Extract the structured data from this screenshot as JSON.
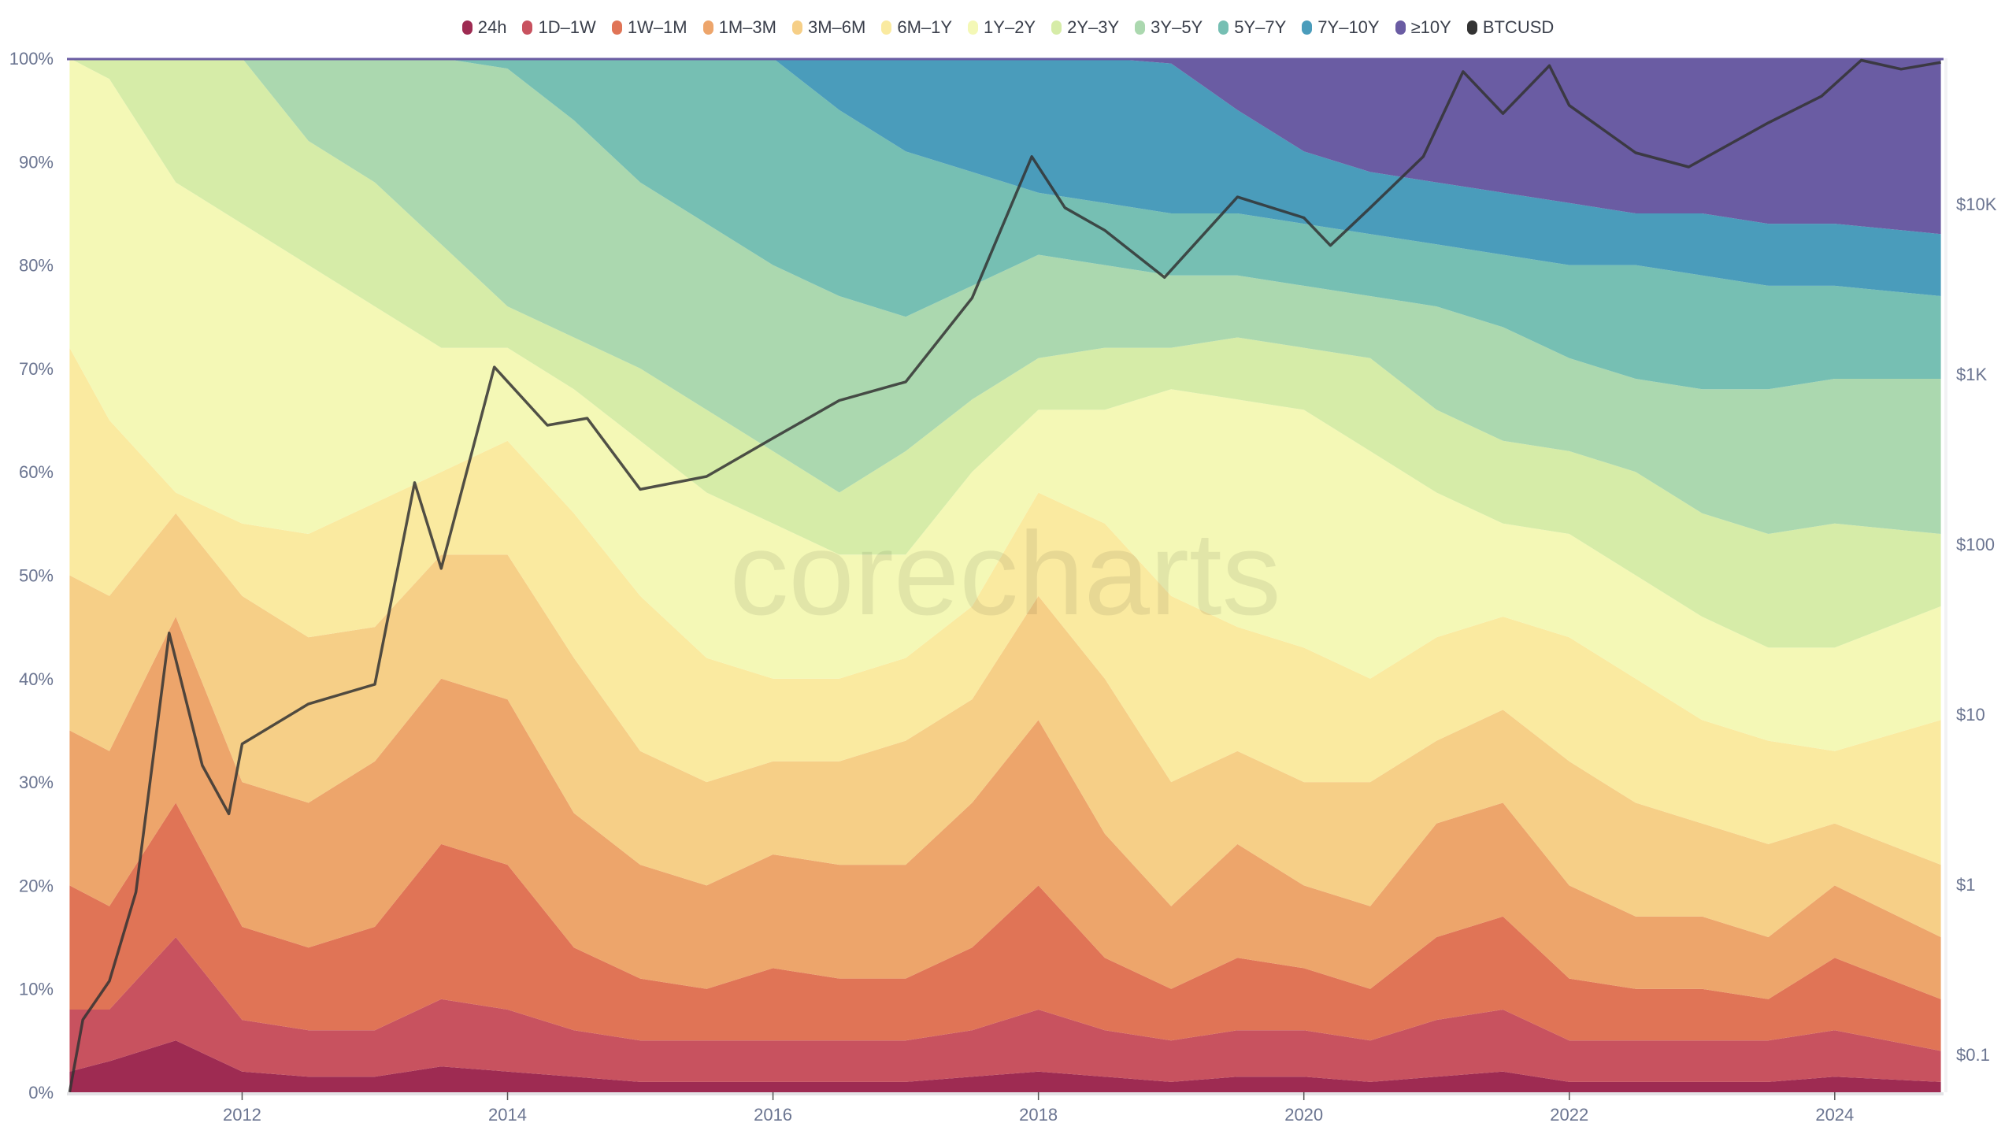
{
  "chart_data": {
    "type": "area",
    "stacked": true,
    "normalized_percent": true,
    "watermark": "corecharts",
    "legend_position": "top-center",
    "series_names": [
      "24h",
      "1D–1W",
      "1W–1M",
      "1M–3M",
      "3M–6M",
      "6M–1Y",
      "1Y–2Y",
      "2Y–3Y",
      "3Y–5Y",
      "5Y–7Y",
      "7Y–10Y",
      "≥10Y",
      "BTCUSD"
    ],
    "colors": [
      "#9e2b52",
      "#c8525f",
      "#e07456",
      "#eda56b",
      "#f6cf87",
      "#faeaa0",
      "#f4f8b6",
      "#d6eca8",
      "#abd8af",
      "#76bfb3",
      "#4a9cbb",
      "#6a5ca3",
      "#333333"
    ],
    "x": [
      2010.7,
      2011,
      2011.5,
      2012,
      2012.5,
      2013,
      2013.5,
      2014,
      2014.5,
      2015,
      2015.5,
      2016,
      2016.5,
      2017,
      2017.5,
      2018,
      2018.5,
      2019,
      2019.5,
      2020,
      2020.5,
      2021,
      2021.5,
      2022,
      2022.5,
      2023,
      2023.5,
      2024,
      2024.8
    ],
    "cumulative_tops_percent": [
      [
        2,
        3,
        5,
        2,
        1.5,
        1.5,
        2.5,
        2,
        1.5,
        1,
        1,
        1,
        1,
        1,
        1.5,
        2,
        1.5,
        1,
        1.5,
        1.5,
        1,
        1.5,
        2,
        1,
        1,
        1,
        1,
        1.5,
        1
      ],
      [
        8,
        8,
        15,
        7,
        6,
        6,
        9,
        8,
        6,
        5,
        5,
        5,
        5,
        5,
        6,
        8,
        6,
        5,
        6,
        6,
        5,
        7,
        8,
        5,
        5,
        5,
        5,
        6,
        4
      ],
      [
        20,
        18,
        28,
        16,
        14,
        16,
        24,
        22,
        14,
        11,
        10,
        12,
        11,
        11,
        14,
        20,
        13,
        10,
        13,
        12,
        10,
        15,
        17,
        11,
        10,
        10,
        9,
        13,
        9
      ],
      [
        35,
        33,
        46,
        30,
        28,
        32,
        40,
        38,
        27,
        22,
        20,
        23,
        22,
        22,
        28,
        36,
        25,
        18,
        24,
        20,
        18,
        26,
        28,
        20,
        17,
        17,
        15,
        20,
        15
      ],
      [
        50,
        48,
        56,
        48,
        44,
        45,
        52,
        52,
        42,
        33,
        30,
        32,
        32,
        34,
        38,
        48,
        40,
        30,
        33,
        30,
        30,
        34,
        37,
        32,
        28,
        26,
        24,
        26,
        22
      ],
      [
        72,
        65,
        58,
        55,
        54,
        57,
        60,
        63,
        56,
        48,
        42,
        40,
        40,
        42,
        47,
        58,
        55,
        48,
        45,
        43,
        40,
        44,
        46,
        44,
        40,
        36,
        34,
        33,
        36
      ],
      [
        100,
        98,
        88,
        84,
        80,
        76,
        72,
        72,
        68,
        63,
        58,
        55,
        52,
        52,
        60,
        66,
        66,
        68,
        67,
        66,
        62,
        58,
        55,
        54,
        50,
        46,
        43,
        43,
        47
      ],
      [
        100,
        100,
        100,
        100,
        92,
        88,
        82,
        76,
        73,
        70,
        66,
        62,
        58,
        62,
        67,
        71,
        72,
        72,
        73,
        72,
        71,
        66,
        63,
        62,
        60,
        56,
        54,
        55,
        54
      ],
      [
        100,
        100,
        100,
        100,
        100,
        100,
        100,
        99,
        94,
        88,
        84,
        80,
        77,
        75,
        78,
        81,
        80,
        79,
        79,
        78,
        77,
        76,
        74,
        71,
        69,
        68,
        68,
        69,
        69
      ],
      [
        100,
        100,
        100,
        100,
        100,
        100,
        100,
        100,
        100,
        100,
        100,
        100,
        95,
        91,
        89,
        87,
        86,
        85,
        85,
        84,
        83,
        82,
        81,
        80,
        80,
        79,
        78,
        78,
        77
      ],
      [
        100,
        100,
        100,
        100,
        100,
        100,
        100,
        100,
        100,
        100,
        100,
        100,
        100,
        100,
        100,
        100,
        100,
        99.5,
        95,
        91,
        89,
        88,
        87,
        86,
        85,
        85,
        84,
        84,
        83
      ]
    ],
    "btc_price": {
      "x": [
        2010.7,
        2010.8,
        2011,
        2011.2,
        2011.45,
        2011.7,
        2011.9,
        2012,
        2012.5,
        2013,
        2013.3,
        2013.5,
        2013.9,
        2014.3,
        2014.6,
        2015,
        2015.5,
        2016,
        2016.5,
        2017,
        2017.5,
        2017.95,
        2018.2,
        2018.5,
        2018.95,
        2019.5,
        2020,
        2020.2,
        2020.5,
        2020.9,
        2021.2,
        2021.5,
        2021.85,
        2022,
        2022.5,
        2022.9,
        2023.5,
        2023.9,
        2024.2,
        2024.5,
        2024.8
      ],
      "y": [
        0.06,
        0.16,
        0.27,
        0.9,
        30,
        5,
        2.6,
        6.7,
        11.5,
        15,
        230,
        72,
        1100,
        500,
        550,
        210,
        250,
        420,
        700,
        900,
        2800,
        19000,
        9500,
        7000,
        3700,
        11000,
        8300,
        5700,
        9500,
        19000,
        60000,
        34000,
        65000,
        38000,
        20000,
        16500,
        30000,
        43000,
        70000,
        62000,
        68000
      ]
    },
    "left_axis": {
      "ticks": [
        "0%",
        "10%",
        "20%",
        "30%",
        "40%",
        "50%",
        "60%",
        "70%",
        "80%",
        "90%",
        "100%"
      ],
      "range": [
        0,
        100
      ]
    },
    "right_axis": {
      "scale": "log",
      "ticks": [
        "$0.1",
        "$1",
        "$10",
        "$100",
        "$1K",
        "$10K"
      ],
      "tick_values": [
        0.1,
        1,
        10,
        100,
        1000,
        10000
      ]
    },
    "x_axis": {
      "ticks": [
        "2012",
        "2014",
        "2016",
        "2018",
        "2020",
        "2022",
        "2024"
      ],
      "tick_values": [
        2012,
        2014,
        2016,
        2018,
        2020,
        2022,
        2024
      ],
      "range": [
        2010.68,
        2024.82
      ]
    }
  }
}
